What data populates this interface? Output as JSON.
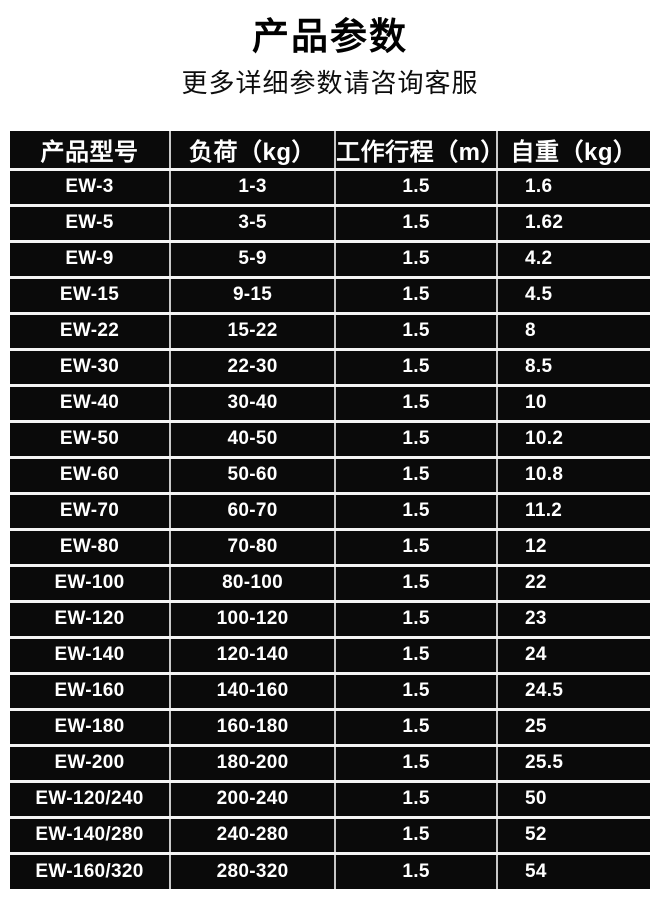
{
  "header": {
    "title": "产品参数",
    "subtitle": "更多详细参数请咨询客服"
  },
  "table": {
    "columns": [
      "产品型号",
      "负荷（kg）",
      "工作行程（m）",
      "自重（kg）"
    ],
    "rows": [
      [
        "EW-3",
        "1-3",
        "1.5",
        "1.6"
      ],
      [
        "EW-5",
        "3-5",
        "1.5",
        "1.62"
      ],
      [
        "EW-9",
        "5-9",
        "1.5",
        "4.2"
      ],
      [
        "EW-15",
        "9-15",
        "1.5",
        "4.5"
      ],
      [
        "EW-22",
        "15-22",
        "1.5",
        "8"
      ],
      [
        "EW-30",
        "22-30",
        "1.5",
        "8.5"
      ],
      [
        "EW-40",
        "30-40",
        "1.5",
        "10"
      ],
      [
        "EW-50",
        "40-50",
        "1.5",
        "10.2"
      ],
      [
        "EW-60",
        "50-60",
        "1.5",
        "10.8"
      ],
      [
        "EW-70",
        "60-70",
        "1.5",
        "11.2"
      ],
      [
        "EW-80",
        "70-80",
        "1.5",
        "12"
      ],
      [
        "EW-100",
        "80-100",
        "1.5",
        "22"
      ],
      [
        "EW-120",
        "100-120",
        "1.5",
        "23"
      ],
      [
        "EW-140",
        "120-140",
        "1.5",
        "24"
      ],
      [
        "EW-160",
        "140-160",
        "1.5",
        "24.5"
      ],
      [
        "EW-180",
        "160-180",
        "1.5",
        "25"
      ],
      [
        "EW-200",
        "180-200",
        "1.5",
        "25.5"
      ],
      [
        "EW-120/240",
        "200-240",
        "1.5",
        "50"
      ],
      [
        "EW-140/280",
        "240-280",
        "1.5",
        "52"
      ],
      [
        "EW-160/320",
        "280-320",
        "1.5",
        "54"
      ]
    ]
  },
  "colors": {
    "page_background": "#ffffff",
    "title_text": "#000000",
    "table_cell_background": "#0a0a0a",
    "table_text": "#ffffff",
    "grid_line_horizontal": "#f4f4f4",
    "grid_line_vertical": "#c9c9c9"
  }
}
